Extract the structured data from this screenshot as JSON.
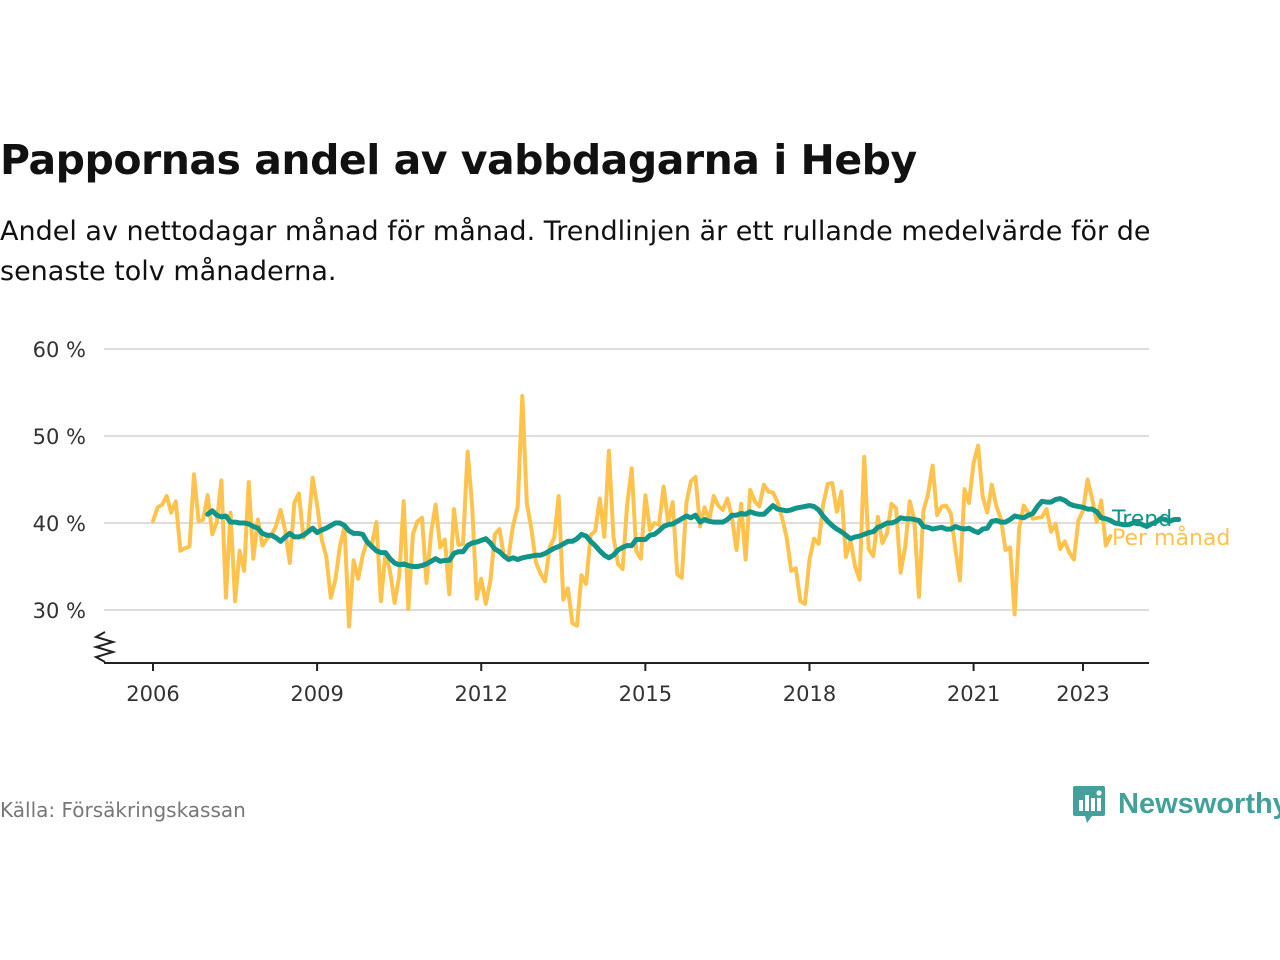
{
  "title": "Pappornas andel av vabbdagarna i Heby",
  "subtitle": "Andel av nettodagar månad för månad. Trendlinjen är ett rullande medelvärde för de senaste tolv månaderna.",
  "source": "Källa: Försäkringskassan",
  "brand": "Newsworthy",
  "colors": {
    "monthly": "#ffc34d",
    "trend": "#129488",
    "grid": "#dddddd",
    "axis": "#222222",
    "brand": "#43a09a"
  },
  "chart_data": {
    "type": "line",
    "x_start": 2006.0,
    "x_step": 0.08333,
    "xlim": [
      2005.1,
      2024.2
    ],
    "ylim": [
      24,
      60
    ],
    "y_ticks": [
      30,
      40,
      50,
      60
    ],
    "y_tick_labels": [
      "30 %",
      "40 %",
      "50 %",
      "60 %"
    ],
    "x_ticks": [
      2006,
      2009,
      2012,
      2015,
      2018,
      2021,
      2023
    ],
    "x_tick_labels": [
      "2006",
      "2009",
      "2012",
      "2015",
      "2018",
      "2021",
      "2023"
    ],
    "y_axis_break": true,
    "series": [
      {
        "name": "Per månad",
        "label": "Per månad",
        "color": "#ffc34d",
        "values": [
          40.2,
          41.8,
          42.1,
          43.1,
          41.2,
          42.5,
          36.8,
          37.1,
          37.3,
          45.6,
          40.2,
          40.4,
          43.2,
          38.7,
          40.1,
          44.9,
          31.4,
          41.2,
          31.0,
          36.8,
          34.5,
          44.7,
          35.9,
          40.4,
          37.4,
          38.2,
          38.6,
          39.7,
          41.5,
          39.1,
          35.4,
          42.3,
          43.4,
          38.3,
          39.2,
          45.2,
          42.1,
          38.1,
          36.2,
          31.4,
          33.5,
          37.3,
          39.6,
          28.1,
          35.7,
          33.6,
          36.3,
          37.9,
          37.5,
          40.1,
          31.0,
          36.6,
          34.4,
          30.8,
          33.9,
          42.5,
          30.1,
          38.7,
          40.2,
          40.6,
          33.1,
          38.9,
          42.1,
          37.2,
          38.1,
          31.8,
          41.6,
          37.5,
          37.6,
          48.2,
          42.0,
          31.3,
          33.6,
          30.7,
          33.4,
          38.7,
          39.3,
          36.1,
          36.3,
          39.7,
          41.9,
          54.6,
          42.3,
          39.3,
          35.5,
          34.2,
          33.3,
          37.2,
          38.3,
          43.1,
          31.2,
          32.5,
          28.5,
          28.2,
          34.0,
          33.0,
          38.6,
          39.1,
          42.8,
          38.4,
          48.3,
          38.5,
          35.3,
          34.7,
          42.1,
          46.3,
          36.8,
          35.9,
          43.2,
          39.2,
          40.0,
          39.8,
          44.2,
          40.1,
          42.4,
          34.1,
          33.7,
          42.3,
          44.8,
          45.3,
          39.6,
          41.8,
          40.3,
          43.1,
          42.0,
          41.5,
          42.8,
          40.6,
          36.9,
          42.2,
          35.8,
          43.8,
          42.5,
          41.9,
          44.4,
          43.6,
          43.5,
          42.4,
          40.6,
          38.3,
          34.5,
          34.8,
          31.0,
          30.7,
          35.8,
          38.2,
          37.6,
          42.1,
          44.5,
          44.6,
          41.3,
          43.6,
          36.1,
          38.0,
          35.0,
          33.5,
          47.6,
          37.0,
          36.2,
          40.7,
          37.7,
          38.8,
          42.2,
          41.7,
          34.3,
          37.3,
          42.5,
          40.4,
          31.5,
          41.4,
          43.3,
          46.6,
          40.9,
          41.9,
          42.0,
          41.1,
          37.0,
          33.4,
          43.9,
          42.3,
          46.9,
          48.9,
          43.0,
          41.2,
          44.4,
          41.9,
          40.5,
          36.9,
          37.2,
          29.5,
          39.4,
          42.0,
          41.2,
          40.5,
          40.6,
          40.7,
          41.6,
          39.0,
          39.9,
          37.0,
          37.9,
          36.6,
          35.8,
          40.3,
          41.4,
          45.0,
          42.8,
          40.1,
          42.6,
          37.4,
          38.5
        ],
        "x_offset_months": 0
      },
      {
        "name": "Trend",
        "label": "Trend",
        "color": "#129488",
        "values": [
          41.0,
          41.4,
          40.9,
          40.7,
          40.8,
          40.1,
          40.1,
          40.0,
          40.0,
          39.9,
          39.6,
          39.4,
          38.8,
          38.6,
          38.6,
          38.3,
          37.9,
          38.4,
          38.8,
          38.4,
          38.4,
          38.6,
          39.0,
          39.4,
          38.9,
          39.2,
          39.4,
          39.7,
          40.0,
          40.0,
          39.7,
          39.1,
          38.8,
          38.8,
          38.7,
          37.8,
          37.3,
          36.8,
          36.6,
          36.6,
          35.9,
          35.4,
          35.2,
          35.3,
          35.1,
          35.0,
          35.0,
          35.1,
          35.3,
          35.6,
          35.9,
          35.6,
          35.7,
          35.7,
          36.5,
          36.7,
          36.7,
          37.4,
          37.7,
          37.8,
          38.0,
          38.2,
          37.7,
          37.0,
          36.7,
          36.2,
          35.8,
          36.0,
          35.8,
          36.0,
          36.1,
          36.2,
          36.3,
          36.3,
          36.5,
          36.8,
          37.1,
          37.3,
          37.6,
          37.9,
          37.9,
          38.2,
          38.7,
          38.5,
          37.9,
          37.4,
          36.8,
          36.3,
          36.0,
          36.3,
          36.9,
          37.2,
          37.4,
          37.4,
          38.1,
          38.1,
          38.1,
          38.6,
          38.7,
          39.1,
          39.6,
          39.8,
          39.9,
          40.2,
          40.5,
          40.8,
          40.6,
          40.9,
          40.1,
          40.4,
          40.2,
          40.1,
          40.1,
          40.1,
          40.4,
          40.9,
          40.9,
          41.1,
          41.0,
          41.3,
          41.1,
          41.0,
          41.0,
          41.5,
          42.0,
          41.6,
          41.5,
          41.4,
          41.5,
          41.7,
          41.8,
          41.9,
          42.0,
          41.9,
          41.5,
          40.8,
          40.2,
          39.7,
          39.3,
          39.0,
          38.6,
          38.2,
          38.4,
          38.5,
          38.7,
          38.9,
          39.0,
          39.5,
          39.7,
          40.0,
          40.0,
          40.2,
          40.6,
          40.5,
          40.5,
          40.4,
          40.3,
          39.6,
          39.5,
          39.3,
          39.4,
          39.5,
          39.3,
          39.3,
          39.6,
          39.4,
          39.3,
          39.4,
          39.1,
          38.9,
          39.3,
          39.4,
          40.2,
          40.3,
          40.1,
          40.1,
          40.4,
          40.8,
          40.7,
          40.6,
          40.9,
          41.1,
          41.9,
          42.5,
          42.4,
          42.4,
          42.7,
          42.8,
          42.6,
          42.2,
          42.0,
          41.9,
          41.8,
          41.6,
          41.6,
          41.3,
          40.6,
          40.5,
          40.3,
          40.0,
          39.9,
          39.8,
          39.8,
          40.0,
          40.1,
          39.8,
          39.6,
          39.9,
          40.1,
          40.5,
          40.4,
          40.2,
          40.4,
          40.4
        ],
        "x_offset_months": 12
      }
    ]
  }
}
